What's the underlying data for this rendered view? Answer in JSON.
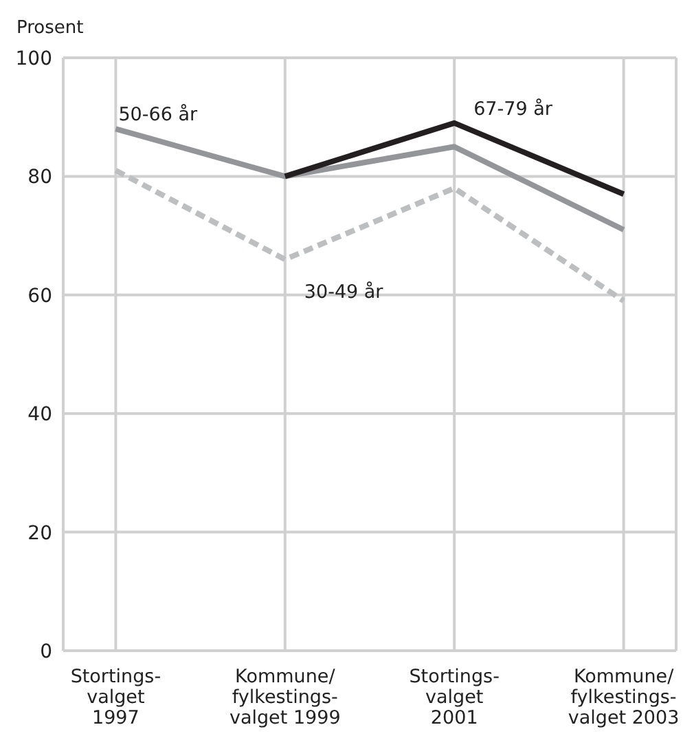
{
  "chart_data": {
    "type": "line",
    "ylabel": "Prosent",
    "categories": [
      "Stortings-\nvalget\n1997",
      "Kommune/\nfylkestings-\nvalget 1999",
      "Stortings-\nvalget\n2001",
      "Kommune/\nfylkestings-\nvalget 2003"
    ],
    "series": [
      {
        "name": "30-49 år",
        "color": "#bcbec0",
        "line_style": "dashed",
        "values": [
          81,
          66,
          78,
          59
        ]
      },
      {
        "name": "50-66 år",
        "color": "#939598",
        "values": [
          88,
          80,
          85,
          71
        ]
      },
      {
        "name": "67-79 år",
        "color": "#231f20",
        "values": [
          null,
          80,
          89,
          77
        ]
      }
    ],
    "ylim": [
      0,
      100
    ],
    "yticks": [
      0,
      20,
      40,
      60,
      80,
      100
    ],
    "grid": true,
    "marker": "none",
    "line_style": "solid"
  }
}
